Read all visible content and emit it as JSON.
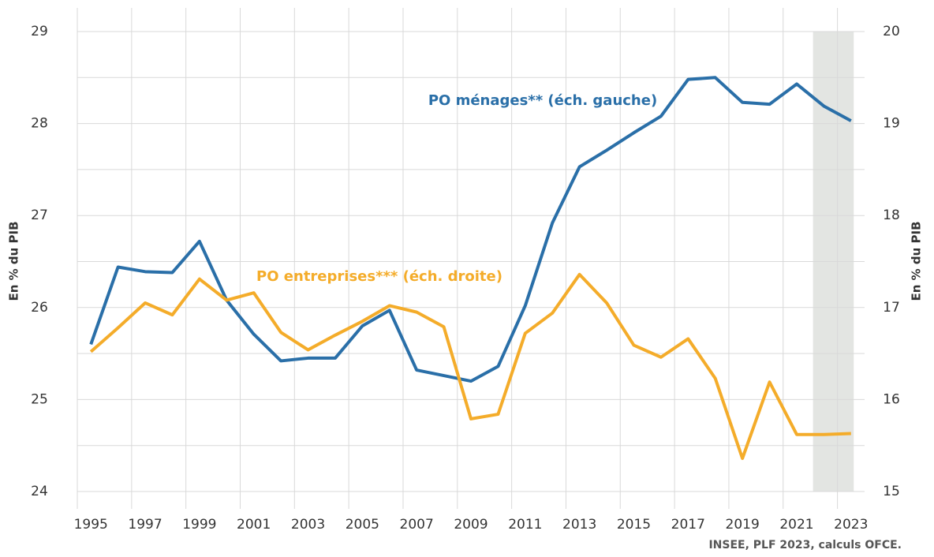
{
  "chart_data": {
    "type": "line",
    "x": [
      1995,
      1996,
      1997,
      1998,
      1999,
      2000,
      2001,
      2002,
      2003,
      2004,
      2005,
      2006,
      2007,
      2008,
      2009,
      2010,
      2011,
      2012,
      2013,
      2014,
      2015,
      2016,
      2017,
      2018,
      2019,
      2020,
      2021,
      2022,
      2023
    ],
    "series": [
      {
        "name": "PO ménages** (éch. gauche)",
        "color": "#2a6fa8",
        "axis": "y",
        "values": [
          25.6,
          26.44,
          26.39,
          26.38,
          26.72,
          26.08,
          25.71,
          25.42,
          25.45,
          25.45,
          25.8,
          25.97,
          25.32,
          25.26,
          25.2,
          25.36,
          26.02,
          26.92,
          27.53,
          27.71,
          27.9,
          28.08,
          28.48,
          28.5,
          28.23,
          28.21,
          28.43,
          28.19,
          28.03
        ]
      },
      {
        "name": "PO entreprises*** (éch. droite)",
        "color": "#f4ac2a",
        "axis": "y2",
        "values": [
          16.52,
          16.78,
          17.05,
          16.92,
          17.31,
          17.08,
          17.16,
          16.73,
          16.54,
          16.7,
          16.85,
          17.02,
          16.95,
          16.79,
          15.79,
          15.84,
          16.72,
          16.94,
          17.36,
          17.05,
          16.59,
          16.46,
          16.66,
          16.23,
          15.36,
          16.19,
          15.62,
          15.62,
          15.63
        ]
      }
    ],
    "xlim": [
      1994.5,
      2023.5
    ],
    "xticks": [
      1995,
      1997,
      1999,
      2001,
      2003,
      2005,
      2007,
      2009,
      2011,
      2013,
      2015,
      2017,
      2019,
      2021,
      2023
    ],
    "ylim": [
      24,
      29
    ],
    "yticks": [
      24,
      25,
      26,
      27,
      28,
      29
    ],
    "yminor": [
      24.5,
      25.5,
      26.5,
      27.5,
      28.5
    ],
    "y2lim": [
      15,
      20
    ],
    "y2ticks": [
      15,
      16,
      17,
      18,
      19,
      20
    ],
    "ylabel": "En % du PIB",
    "y2label": "En % du PIB",
    "shade": [
      2022,
      2023
    ],
    "shade_color": "#e3e5e2",
    "grid": true,
    "source": "INSEE, PLF 2023, calculs OFCE."
  }
}
